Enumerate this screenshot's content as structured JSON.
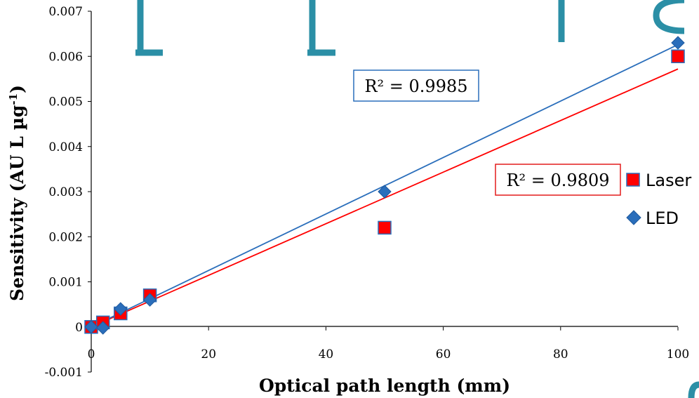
{
  "chart_data": {
    "type": "scatter",
    "title": "",
    "xlabel": "Optical path length (mm)",
    "ylabel_main": "Sensitivity (AU L µg",
    "ylabel_sup": "-1",
    "ylabel_close": ")",
    "xlim": [
      0,
      100
    ],
    "ylim": [
      -0.001,
      0.007
    ],
    "x_ticks": [
      0,
      20,
      40,
      60,
      80,
      100
    ],
    "x_tick_labels": [
      "0",
      "20",
      "40",
      "60",
      "80",
      "100"
    ],
    "y_ticks": [
      -0.001,
      0,
      0.001,
      0.002,
      0.003,
      0.004,
      0.005,
      0.006,
      0.007
    ],
    "y_tick_labels": [
      "-0.001",
      "0",
      "0.001",
      "0.002",
      "0.003",
      "0.004",
      "0.005",
      "0.006",
      "0.007"
    ],
    "grid": false,
    "legend_position": "right",
    "series": [
      {
        "name": "Laser",
        "marker": "square",
        "color": "#ff0000",
        "edge_color": "#2a6ebb",
        "trendline_color": "#ff0000",
        "x": [
          0,
          2,
          5,
          10,
          50,
          100
        ],
        "y": [
          0.0,
          0.0001,
          0.0003,
          0.0007,
          0.0022,
          0.006
        ],
        "trendline": {
          "slope": 5.72e-05,
          "intercept": 0.0
        },
        "r2_label": "R² = 0.9809"
      },
      {
        "name": "LED",
        "marker": "diamond",
        "color": "#2a6ebb",
        "edge_color": "#1f5a9e",
        "trendline_color": "#2a6ebb",
        "x": [
          0,
          2,
          5,
          10,
          50,
          100
        ],
        "y": [
          0.0,
          -2e-05,
          0.0004,
          0.0006,
          0.003,
          0.0063
        ],
        "trendline": {
          "slope": 6.26e-05,
          "intercept": 0.0
        },
        "r2_label": "R² = 0.9985"
      }
    ]
  }
}
